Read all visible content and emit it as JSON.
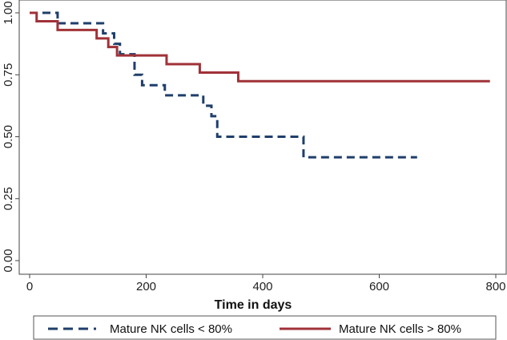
{
  "chart_data": {
    "type": "line",
    "title": "",
    "xlabel": "Time in days",
    "ylabel": "",
    "xlim": [
      0,
      800
    ],
    "ylim": [
      0,
      1
    ],
    "x_ticks": [
      "0",
      "200",
      "400",
      "600",
      "800"
    ],
    "y_ticks": [
      "0.00",
      "0.25",
      "0.50",
      "0.75",
      "1.00"
    ],
    "grid": "horizontal-faint",
    "legend_position": "bottom",
    "series": [
      {
        "name": "Mature NK cells < 80%",
        "color": "#1f3f6b",
        "style": "dashed",
        "steps": [
          [
            0,
            1.0
          ],
          [
            48,
            0.958
          ],
          [
            126,
            0.917
          ],
          [
            145,
            0.875
          ],
          [
            155,
            0.833
          ],
          [
            180,
            0.75
          ],
          [
            193,
            0.708
          ],
          [
            232,
            0.667
          ],
          [
            298,
            0.625
          ],
          [
            312,
            0.583
          ],
          [
            322,
            0.5
          ],
          [
            470,
            0.417
          ],
          [
            665,
            0.417
          ]
        ]
      },
      {
        "name": "Mature NK cells > 80%",
        "color": "#a03238",
        "style": "solid",
        "steps": [
          [
            0,
            1.0
          ],
          [
            12,
            0.966
          ],
          [
            48,
            0.931
          ],
          [
            115,
            0.897
          ],
          [
            135,
            0.862
          ],
          [
            150,
            0.828
          ],
          [
            235,
            0.793
          ],
          [
            292,
            0.759
          ],
          [
            358,
            0.724
          ],
          [
            790,
            0.724
          ]
        ]
      }
    ]
  }
}
